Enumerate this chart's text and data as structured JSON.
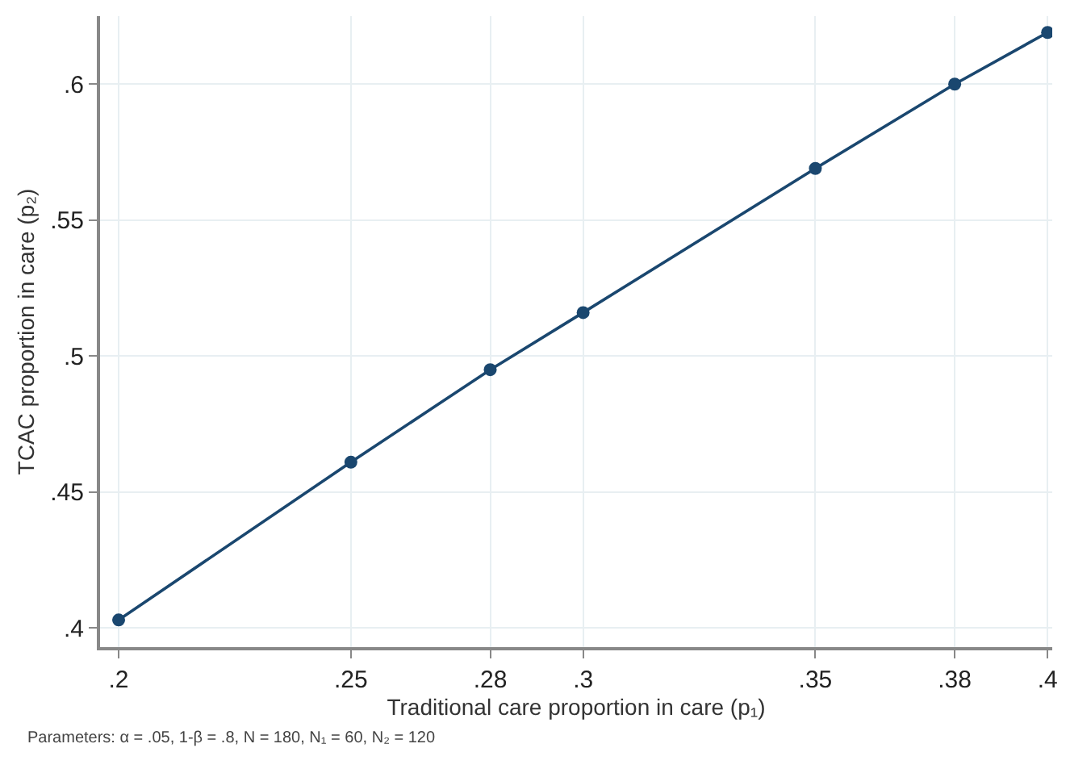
{
  "chart_data": {
    "type": "line",
    "xlabel": "Traditional care proportion in care (p₁)",
    "ylabel": "TCAC proportion in care (p₂)",
    "x": [
      0.2,
      0.25,
      0.28,
      0.3,
      0.35,
      0.38,
      0.4
    ],
    "series": [
      {
        "color": "#1a476f",
        "values": [
          0.403,
          0.461,
          0.495,
          0.516,
          0.569,
          0.6,
          0.619
        ]
      }
    ],
    "xlim": [
      0.196,
      0.401
    ],
    "ylim": [
      0.393,
      0.625
    ],
    "xticks": [
      {
        "value": 0.2,
        "label": ".2"
      },
      {
        "value": 0.25,
        "label": ".25"
      },
      {
        "value": 0.28,
        "label": ".28"
      },
      {
        "value": 0.3,
        "label": ".3"
      },
      {
        "value": 0.35,
        "label": ".35"
      },
      {
        "value": 0.38,
        "label": ".38"
      },
      {
        "value": 0.4,
        "label": ".4"
      }
    ],
    "yticks": [
      {
        "value": 0.4,
        "label": ".4"
      },
      {
        "value": 0.45,
        "label": ".45"
      },
      {
        "value": 0.5,
        "label": ".5"
      },
      {
        "value": 0.55,
        "label": ".55"
      },
      {
        "value": 0.6,
        "label": ".6"
      }
    ],
    "grid": true,
    "marker": "circle",
    "line_style": "solid",
    "annotations": [
      "Parameters: α = .05, 1-β = .8, N = 180, N₁ = 60, N₂ = 120"
    ]
  }
}
